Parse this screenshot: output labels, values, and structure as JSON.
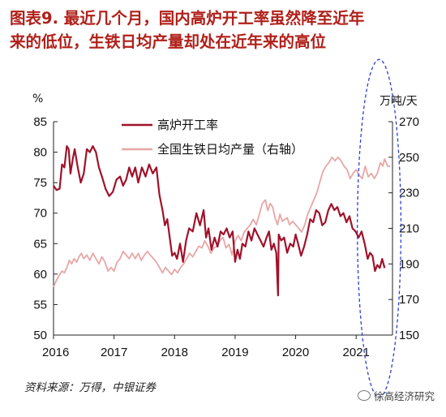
{
  "title_line1": "图表9.  最近几个月，国内高炉开工率虽然降至近年",
  "title_line2": "来的低位，生铁日均产量却处在近年来的高位",
  "left_unit": "%",
  "right_unit": "万吨/天",
  "source": "资料来源：万得，中银证券",
  "watermark": "徐高经济研究",
  "chart_data": {
    "type": "line",
    "xlim": [
      2016.0,
      2021.6
    ],
    "x_ticks": [
      "2016",
      "2017",
      "2018",
      "2019",
      "2020",
      "2021"
    ],
    "y_left_ticks": [
      "50",
      "55",
      "60",
      "65",
      "70",
      "75",
      "80",
      "85"
    ],
    "y_right_ticks": [
      "150",
      "170",
      "190",
      "210",
      "230",
      "250",
      "270"
    ],
    "ylim_left": [
      50,
      85
    ],
    "ylim_right": [
      150,
      270
    ],
    "legend_position": "top-center",
    "series": [
      {
        "name": "高炉开工率",
        "axis": "left",
        "color": "#a0122a",
        "points": [
          [
            2016.0,
            74.5
          ],
          [
            2016.05,
            73.8
          ],
          [
            2016.1,
            74.0
          ],
          [
            2016.14,
            78.0
          ],
          [
            2016.18,
            77.5
          ],
          [
            2016.22,
            81.0
          ],
          [
            2016.25,
            80.5
          ],
          [
            2016.28,
            76.5
          ],
          [
            2016.32,
            79.0
          ],
          [
            2016.35,
            80.5
          ],
          [
            2016.4,
            77.5
          ],
          [
            2016.45,
            75.0
          ],
          [
            2016.5,
            76.5
          ],
          [
            2016.55,
            80.5
          ],
          [
            2016.6,
            80.0
          ],
          [
            2016.65,
            81.0
          ],
          [
            2016.7,
            80.0
          ],
          [
            2016.75,
            77.5
          ],
          [
            2016.8,
            76.0
          ],
          [
            2016.86,
            74.0
          ],
          [
            2016.92,
            72.8
          ],
          [
            2016.98,
            73.5
          ],
          [
            2017.04,
            75.5
          ],
          [
            2017.1,
            76.0
          ],
          [
            2017.15,
            74.5
          ],
          [
            2017.2,
            75.5
          ],
          [
            2017.25,
            77.5
          ],
          [
            2017.3,
            76.0
          ],
          [
            2017.35,
            77.5
          ],
          [
            2017.4,
            75.0
          ],
          [
            2017.46,
            77.5
          ],
          [
            2017.52,
            76.0
          ],
          [
            2017.58,
            78.0
          ],
          [
            2017.64,
            76.5
          ],
          [
            2017.7,
            77.5
          ],
          [
            2017.75,
            73.0
          ],
          [
            2017.8,
            70.5
          ],
          [
            2017.84,
            68.0
          ],
          [
            2017.88,
            69.0
          ],
          [
            2017.92,
            66.0
          ],
          [
            2017.96,
            63.0
          ],
          [
            2018.0,
            63.5
          ],
          [
            2018.04,
            62.5
          ],
          [
            2018.09,
            65.0
          ],
          [
            2018.14,
            62.0
          ],
          [
            2018.19,
            65.5
          ],
          [
            2018.24,
            67.5
          ],
          [
            2018.3,
            67.0
          ],
          [
            2018.36,
            70.0
          ],
          [
            2018.42,
            68.0
          ],
          [
            2018.48,
            70.5
          ],
          [
            2018.52,
            66.0
          ],
          [
            2018.56,
            67.5
          ],
          [
            2018.61,
            64.0
          ],
          [
            2018.66,
            66.0
          ],
          [
            2018.71,
            64.5
          ],
          [
            2018.76,
            67.0
          ],
          [
            2018.81,
            66.5
          ],
          [
            2018.86,
            67.5
          ],
          [
            2018.91,
            66.0
          ],
          [
            2018.96,
            67.0
          ],
          [
            2019.0,
            62.0
          ],
          [
            2019.04,
            64.0
          ],
          [
            2019.08,
            62.5
          ],
          [
            2019.12,
            65.0
          ],
          [
            2019.17,
            64.5
          ],
          [
            2019.22,
            67.0
          ],
          [
            2019.27,
            65.5
          ],
          [
            2019.32,
            67.5
          ],
          [
            2019.37,
            66.5
          ],
          [
            2019.42,
            65.5
          ],
          [
            2019.47,
            64.5
          ],
          [
            2019.52,
            66.0
          ],
          [
            2019.56,
            67.0
          ],
          [
            2019.6,
            64.0
          ],
          [
            2019.64,
            65.0
          ],
          [
            2019.68,
            63.5
          ],
          [
            2019.71,
            56.5
          ],
          [
            2019.72,
            66.5
          ],
          [
            2019.76,
            65.5
          ],
          [
            2019.81,
            66.0
          ],
          [
            2019.86,
            63.5
          ],
          [
            2019.91,
            65.0
          ],
          [
            2019.96,
            64.5
          ],
          [
            2020.0,
            66.5
          ],
          [
            2020.04,
            65.0
          ],
          [
            2020.09,
            63.0
          ],
          [
            2020.14,
            64.5
          ],
          [
            2020.19,
            66.5
          ],
          [
            2020.24,
            69.0
          ],
          [
            2020.29,
            68.5
          ],
          [
            2020.34,
            70.5
          ],
          [
            2020.39,
            70.0
          ],
          [
            2020.44,
            68.0
          ],
          [
            2020.49,
            68.5
          ],
          [
            2020.54,
            70.5
          ],
          [
            2020.59,
            71.5
          ],
          [
            2020.64,
            70.5
          ],
          [
            2020.69,
            71.0
          ],
          [
            2020.74,
            69.5
          ],
          [
            2020.79,
            70.0
          ],
          [
            2020.84,
            68.5
          ],
          [
            2020.89,
            69.5
          ],
          [
            2020.94,
            67.5
          ],
          [
            2020.99,
            67.0
          ],
          [
            2021.04,
            66.0
          ],
          [
            2021.09,
            67.0
          ],
          [
            2021.14,
            65.0
          ],
          [
            2021.19,
            62.5
          ],
          [
            2021.23,
            63.5
          ],
          [
            2021.27,
            63.0
          ],
          [
            2021.31,
            60.5
          ],
          [
            2021.35,
            61.5
          ],
          [
            2021.39,
            61.0
          ],
          [
            2021.43,
            62.5
          ],
          [
            2021.47,
            61.0
          ]
        ]
      },
      {
        "name": "全国生铁日均产量（右轴）",
        "axis": "right",
        "color": "#e8a6a6",
        "points": [
          [
            2016.0,
            177
          ],
          [
            2016.05,
            181
          ],
          [
            2016.1,
            184
          ],
          [
            2016.14,
            186
          ],
          [
            2016.18,
            185
          ],
          [
            2016.22,
            188
          ],
          [
            2016.26,
            192
          ],
          [
            2016.3,
            190
          ],
          [
            2016.34,
            193
          ],
          [
            2016.38,
            191
          ],
          [
            2016.42,
            194
          ],
          [
            2016.46,
            196
          ],
          [
            2016.5,
            193
          ],
          [
            2016.55,
            195
          ],
          [
            2016.6,
            192
          ],
          [
            2016.65,
            196
          ],
          [
            2016.7,
            193
          ],
          [
            2016.75,
            190
          ],
          [
            2016.8,
            194
          ],
          [
            2016.85,
            191
          ],
          [
            2016.9,
            186
          ],
          [
            2016.95,
            188
          ],
          [
            2017.0,
            186
          ],
          [
            2017.05,
            191
          ],
          [
            2017.1,
            193
          ],
          [
            2017.15,
            197
          ],
          [
            2017.2,
            195
          ],
          [
            2017.25,
            193
          ],
          [
            2017.3,
            196
          ],
          [
            2017.35,
            193
          ],
          [
            2017.4,
            196
          ],
          [
            2017.45,
            192
          ],
          [
            2017.5,
            195
          ],
          [
            2017.55,
            197
          ],
          [
            2017.6,
            195
          ],
          [
            2017.65,
            193
          ],
          [
            2017.7,
            191
          ],
          [
            2017.75,
            188
          ],
          [
            2017.8,
            185
          ],
          [
            2017.85,
            188
          ],
          [
            2017.9,
            186
          ],
          [
            2017.95,
            184
          ],
          [
            2018.0,
            187
          ],
          [
            2018.05,
            185
          ],
          [
            2018.1,
            188
          ],
          [
            2018.15,
            190
          ],
          [
            2018.2,
            193
          ],
          [
            2018.25,
            196
          ],
          [
            2018.3,
            194
          ],
          [
            2018.35,
            197
          ],
          [
            2018.4,
            200
          ],
          [
            2018.45,
            199
          ],
          [
            2018.5,
            203
          ],
          [
            2018.55,
            200
          ],
          [
            2018.6,
            196
          ],
          [
            2018.65,
            199
          ],
          [
            2018.7,
            200
          ],
          [
            2018.75,
            203
          ],
          [
            2018.8,
            205
          ],
          [
            2018.85,
            199
          ],
          [
            2018.9,
            201
          ],
          [
            2018.95,
            195
          ],
          [
            2019.0,
            203
          ],
          [
            2019.05,
            206
          ],
          [
            2019.1,
            203
          ],
          [
            2019.15,
            208
          ],
          [
            2019.2,
            210
          ],
          [
            2019.25,
            212
          ],
          [
            2019.3,
            215
          ],
          [
            2019.35,
            212
          ],
          [
            2019.4,
            218
          ],
          [
            2019.45,
            224
          ],
          [
            2019.5,
            226
          ],
          [
            2019.54,
            220
          ],
          [
            2019.58,
            224
          ],
          [
            2019.62,
            222
          ],
          [
            2019.66,
            216
          ],
          [
            2019.7,
            212
          ],
          [
            2019.74,
            218
          ],
          [
            2019.78,
            214
          ],
          [
            2019.82,
            215
          ],
          [
            2019.86,
            216
          ],
          [
            2019.9,
            212
          ],
          [
            2019.95,
            214
          ],
          [
            2020.0,
            212
          ],
          [
            2020.05,
            210
          ],
          [
            2020.1,
            208
          ],
          [
            2020.15,
            212
          ],
          [
            2020.2,
            218
          ],
          [
            2020.25,
            222
          ],
          [
            2020.3,
            226
          ],
          [
            2020.35,
            230
          ],
          [
            2020.4,
            236
          ],
          [
            2020.45,
            242
          ],
          [
            2020.5,
            245
          ],
          [
            2020.55,
            247
          ],
          [
            2020.6,
            250
          ],
          [
            2020.65,
            248
          ],
          [
            2020.7,
            250
          ],
          [
            2020.75,
            248
          ],
          [
            2020.8,
            245
          ],
          [
            2020.85,
            243
          ],
          [
            2020.9,
            238
          ],
          [
            2020.95,
            241
          ],
          [
            2021.0,
            243
          ],
          [
            2021.05,
            240
          ],
          [
            2021.1,
            238
          ],
          [
            2021.15,
            245
          ],
          [
            2021.2,
            239
          ],
          [
            2021.25,
            241
          ],
          [
            2021.3,
            238
          ],
          [
            2021.35,
            241
          ],
          [
            2021.4,
            247
          ],
          [
            2021.44,
            245
          ],
          [
            2021.47,
            249
          ],
          [
            2021.52,
            245
          ],
          [
            2021.56,
            245
          ]
        ]
      }
    ],
    "annotation": {
      "type": "dashed-ellipse",
      "color": "#2b3fd1",
      "center": [
        2021.38,
        210
      ],
      "rx_years": 0.36,
      "ry_right_units": 95
    }
  }
}
